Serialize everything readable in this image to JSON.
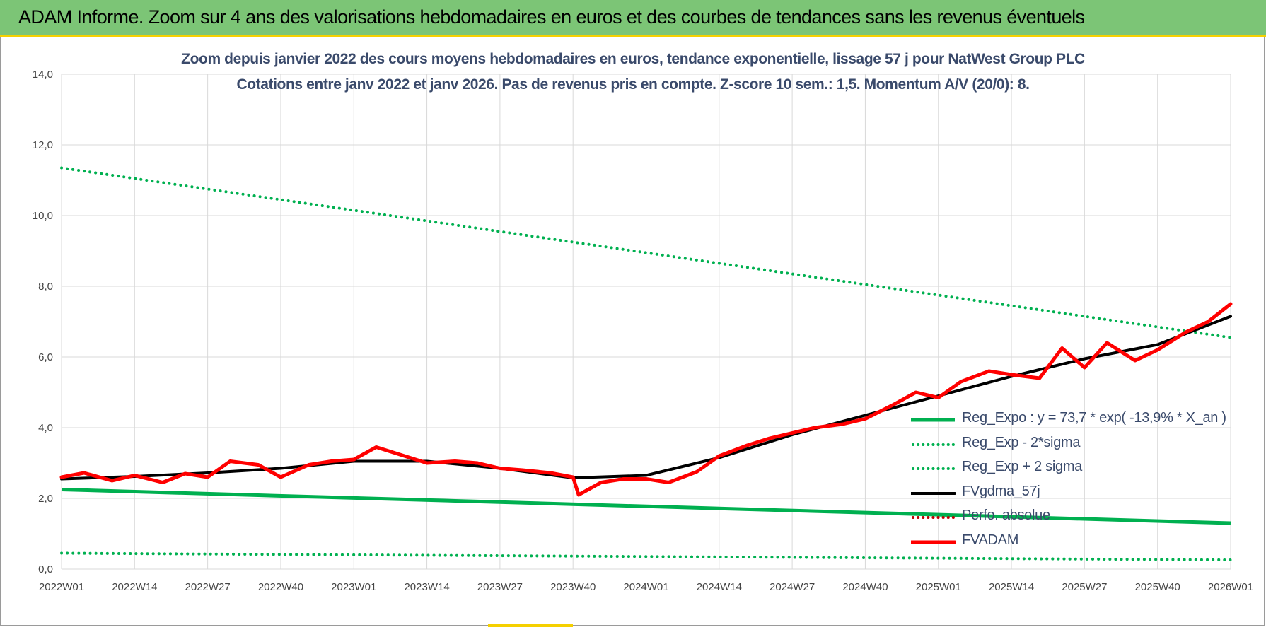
{
  "header": {
    "title": "ADAM Informe. Zoom sur 4 ans des valorisations hebdomadaires en euros et des courbes de tendances sans les revenus éventuels"
  },
  "colors": {
    "header_bg": "#7cc576",
    "header_border": "#f5d000",
    "reg_expo": "#00b050",
    "fvgdma": "#000000",
    "fvadam": "#ff0000",
    "perfo": "#c00000",
    "grid": "#d9d9d9"
  },
  "chart_data": {
    "type": "line",
    "title": "Zoom depuis janvier 2022 des cours moyens hebdomadaires en euros, tendance exponentielle, lissage 57 j pour NatWest Group PLC",
    "subtitle": "Cotations entre janv 2022 et janv 2026. Pas de revenus pris en compte. Z-score 10 sem.: 1,5. Momentum A/V (20/0): 8.",
    "xlabel": "",
    "ylabel": "",
    "ylim": [
      0,
      14
    ],
    "y_ticks": [
      "0,0",
      "2,0",
      "4,0",
      "6,0",
      "8,0",
      "10,0",
      "12,0",
      "14,0"
    ],
    "x_ticks": [
      "2022W01",
      "2022W14",
      "2022W27",
      "2022W40",
      "2023W01",
      "2023W14",
      "2023W27",
      "2023W40",
      "2024W01",
      "2024W14",
      "2024W27",
      "2024W40",
      "2025W01",
      "2025W14",
      "2025W27",
      "2025W40",
      "2026W01"
    ],
    "x_range": [
      "2022W01",
      "2026W01"
    ],
    "grid": true,
    "legend_position": "bottom-right",
    "series": [
      {
        "name": "Reg_Expo : y = 73,7 * exp( -13,9% *  X_an )",
        "style": "solid",
        "color": "#00b050",
        "x": [
          "2022W01",
          "2026W01"
        ],
        "y": [
          2.25,
          1.3
        ]
      },
      {
        "name": "Reg_Exp - 2*sigma",
        "style": "dotted",
        "color": "#00b050",
        "x": [
          "2022W01",
          "2026W01"
        ],
        "y": [
          0.45,
          0.26
        ]
      },
      {
        "name": "Reg_Exp + 2 sigma",
        "style": "dotted",
        "color": "#00b050",
        "x": [
          "2022W01",
          "2026W01"
        ],
        "y": [
          11.35,
          6.55
        ]
      },
      {
        "name": "FVgdma_57j",
        "style": "solid",
        "color": "#000000",
        "x": [
          "2022W01",
          "2022W14",
          "2022W27",
          "2022W40",
          "2023W01",
          "2023W14",
          "2023W27",
          "2023W40",
          "2024W01",
          "2024W14",
          "2024W27",
          "2024W40",
          "2025W01",
          "2025W14",
          "2025W27",
          "2025W40",
          "2026W01"
        ],
        "y": [
          2.55,
          2.62,
          2.72,
          2.85,
          3.05,
          3.05,
          2.85,
          2.58,
          2.65,
          3.15,
          3.8,
          4.35,
          4.9,
          5.45,
          5.95,
          6.35,
          7.15
        ]
      },
      {
        "name": "Perfo. absolue",
        "style": "dotted",
        "color": "#c00000",
        "x": [],
        "y": []
      },
      {
        "name": "FVADAM",
        "style": "solid",
        "color": "#ff0000",
        "x": [
          "2022W01",
          "2022W05",
          "2022W10",
          "2022W14",
          "2022W19",
          "2022W23",
          "2022W27",
          "2022W31",
          "2022W36",
          "2022W40",
          "2022W45",
          "2022W49",
          "2023W01",
          "2023W05",
          "2023W10",
          "2023W14",
          "2023W19",
          "2023W23",
          "2023W27",
          "2023W31",
          "2023W36",
          "2023W40",
          "2023W41",
          "2023W45",
          "2023W49",
          "2024W01",
          "2024W05",
          "2024W10",
          "2024W14",
          "2024W19",
          "2024W23",
          "2024W27",
          "2024W31",
          "2024W36",
          "2024W40",
          "2024W45",
          "2024W49",
          "2025W01",
          "2025W05",
          "2025W10",
          "2025W14",
          "2025W19",
          "2025W23",
          "2025W27",
          "2025W31",
          "2025W36",
          "2025W40",
          "2025W45",
          "2025W49",
          "2026W01"
        ],
        "y": [
          2.6,
          2.72,
          2.5,
          2.65,
          2.45,
          2.7,
          2.6,
          3.05,
          2.95,
          2.6,
          2.95,
          3.05,
          3.1,
          3.45,
          3.2,
          3.0,
          3.05,
          3.0,
          2.85,
          2.8,
          2.72,
          2.6,
          2.1,
          2.45,
          2.55,
          2.55,
          2.45,
          2.75,
          3.2,
          3.5,
          3.7,
          3.85,
          4.0,
          4.1,
          4.25,
          4.65,
          5.0,
          4.85,
          5.3,
          5.6,
          5.5,
          5.4,
          6.25,
          5.7,
          6.4,
          5.9,
          6.2,
          6.7,
          7.0,
          7.5
        ]
      }
    ]
  }
}
